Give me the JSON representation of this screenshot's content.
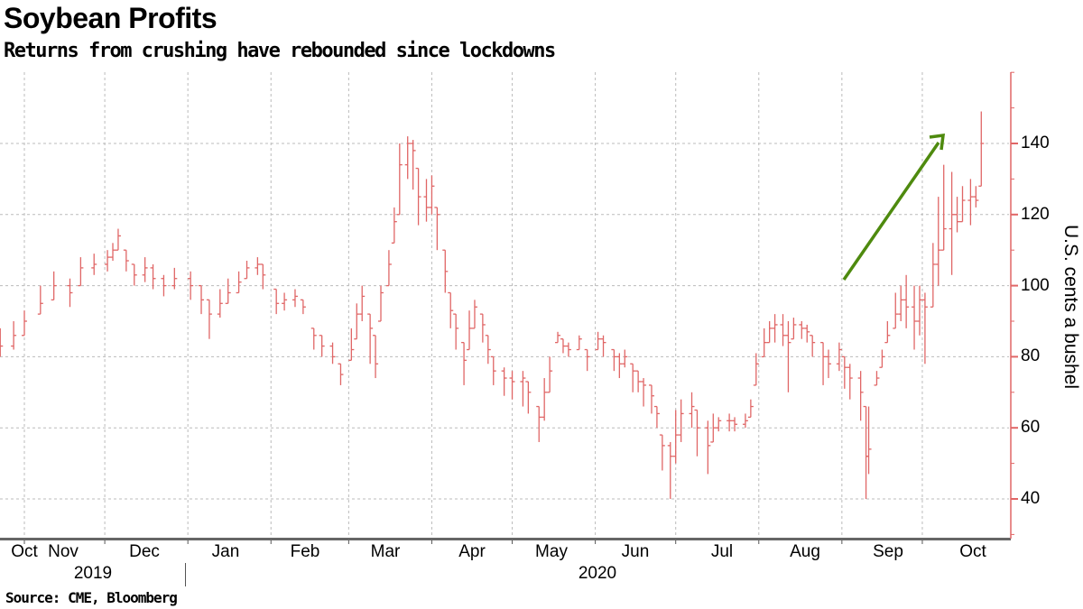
{
  "chart_data": {
    "type": "ohlc",
    "title": "Soybean Profits",
    "subtitle": "Returns from crushing have rebounded since lockdowns",
    "ylabel": "U.S. cents a bushel",
    "source": "Source: CME, Bloomberg",
    "ylim": [
      29,
      160
    ],
    "yticks": [
      "40",
      "60",
      "80",
      "100",
      "120",
      "140"
    ],
    "ytick_values": [
      40,
      60,
      80,
      100,
      120,
      140
    ],
    "x_range": [
      "2019-10-22",
      "2020-10-28"
    ],
    "month_labels": [
      "Oct",
      "Nov",
      "Dec",
      "Jan",
      "Feb",
      "Mar",
      "Apr",
      "May",
      "Jun",
      "Jul",
      "Aug",
      "Sep",
      "Oct"
    ],
    "year_labels": [
      "2019",
      "2020"
    ],
    "grid": true,
    "colors": {
      "bars": "#e06666",
      "axis": "#e06666",
      "arrow": "#4e8a0e",
      "grid": "#bbbbbb"
    },
    "annotation": "upward green arrow",
    "bar_fields": [
      "date",
      "high",
      "low",
      "close"
    ],
    "bars": [
      [
        "2019-10-23",
        88,
        80,
        83
      ],
      [
        "2019-10-28",
        90,
        82,
        86
      ],
      [
        "2019-11-01",
        93,
        86,
        90
      ],
      [
        "2019-11-07",
        100,
        92,
        95
      ],
      [
        "2019-11-12",
        104,
        96,
        100
      ],
      [
        "2019-11-18",
        102,
        94,
        98
      ],
      [
        "2019-11-22",
        108,
        100,
        105
      ],
      [
        "2019-11-27",
        109,
        103,
        106
      ],
      [
        "2019-12-02",
        110,
        104,
        108
      ],
      [
        "2019-12-04",
        112,
        107,
        110
      ],
      [
        "2019-12-06",
        116,
        110,
        114
      ],
      [
        "2019-12-09",
        110,
        104,
        107
      ],
      [
        "2019-12-12",
        106,
        100,
        103
      ],
      [
        "2019-12-16",
        108,
        101,
        105
      ],
      [
        "2019-12-19",
        106,
        99,
        102
      ],
      [
        "2019-12-23",
        103,
        97,
        100
      ],
      [
        "2019-12-27",
        105,
        99,
        102
      ],
      [
        "2020-01-02",
        104,
        96,
        100
      ],
      [
        "2020-01-06",
        100,
        92,
        96
      ],
      [
        "2020-01-09",
        96,
        85,
        92
      ],
      [
        "2020-01-13",
        99,
        91,
        95
      ],
      [
        "2020-01-16",
        102,
        95,
        98
      ],
      [
        "2020-01-20",
        104,
        98,
        101
      ],
      [
        "2020-01-23",
        107,
        102,
        105
      ],
      [
        "2020-01-27",
        108,
        103,
        106
      ],
      [
        "2020-01-29",
        106,
        99,
        103
      ],
      [
        "2020-02-03",
        99,
        92,
        95
      ],
      [
        "2020-02-06",
        98,
        93,
        96
      ],
      [
        "2020-02-10",
        99,
        94,
        97
      ],
      [
        "2020-02-13",
        96,
        92,
        94
      ],
      [
        "2020-02-17",
        88,
        82,
        86
      ],
      [
        "2020-02-20",
        86,
        80,
        83
      ],
      [
        "2020-02-24",
        84,
        78,
        80
      ],
      [
        "2020-02-27",
        78,
        72,
        75
      ],
      [
        "2020-03-02",
        88,
        79,
        82
      ],
      [
        "2020-03-04",
        95,
        85,
        92
      ],
      [
        "2020-03-06",
        100,
        90,
        97
      ],
      [
        "2020-03-09",
        92,
        78,
        88
      ],
      [
        "2020-03-11",
        86,
        74,
        78
      ],
      [
        "2020-03-13",
        100,
        90,
        98
      ],
      [
        "2020-03-16",
        110,
        100,
        106
      ],
      [
        "2020-03-18",
        122,
        112,
        118
      ],
      [
        "2020-03-20",
        140,
        120,
        134
      ],
      [
        "2020-03-23",
        142,
        130,
        140
      ],
      [
        "2020-03-25",
        141,
        127,
        138
      ],
      [
        "2020-03-27",
        133,
        117,
        125
      ],
      [
        "2020-03-30",
        130,
        118,
        122
      ],
      [
        "2020-04-01",
        131,
        120,
        128
      ],
      [
        "2020-04-03",
        122,
        110,
        120
      ],
      [
        "2020-04-06",
        110,
        98,
        104
      ],
      [
        "2020-04-08",
        98,
        88,
        93
      ],
      [
        "2020-04-10",
        92,
        82,
        88
      ],
      [
        "2020-04-13",
        84,
        72,
        79
      ],
      [
        "2020-04-15",
        93,
        82,
        88
      ],
      [
        "2020-04-17",
        96,
        88,
        94
      ],
      [
        "2020-04-20",
        92,
        84,
        89
      ],
      [
        "2020-04-22",
        86,
        78,
        82
      ],
      [
        "2020-04-24",
        80,
        72,
        76
      ],
      [
        "2020-04-28",
        77,
        69,
        74
      ],
      [
        "2020-05-01",
        76,
        68,
        73
      ],
      [
        "2020-05-05",
        76,
        66,
        74
      ],
      [
        "2020-05-07",
        73,
        64,
        70
      ],
      [
        "2020-05-11",
        66,
        56,
        63
      ],
      [
        "2020-05-13",
        74,
        62,
        70
      ],
      [
        "2020-05-15",
        80,
        70,
        76
      ],
      [
        "2020-05-18",
        87,
        84,
        86
      ],
      [
        "2020-05-20",
        85,
        81,
        83
      ],
      [
        "2020-05-22",
        84,
        80,
        82
      ],
      [
        "2020-05-26",
        86,
        82,
        85
      ],
      [
        "2020-05-29",
        82,
        76,
        80
      ],
      [
        "2020-06-02",
        87,
        82,
        85
      ],
      [
        "2020-06-04",
        86,
        80,
        84
      ],
      [
        "2020-06-08",
        82,
        76,
        80
      ],
      [
        "2020-06-10",
        81,
        74,
        78
      ],
      [
        "2020-06-12",
        82,
        77,
        80
      ],
      [
        "2020-06-15",
        78,
        70,
        76
      ],
      [
        "2020-06-17",
        76,
        70,
        73
      ],
      [
        "2020-06-19",
        74,
        66,
        72
      ],
      [
        "2020-06-22",
        72,
        64,
        69
      ],
      [
        "2020-06-24",
        66,
        60,
        64
      ],
      [
        "2020-06-26",
        58,
        48,
        55
      ],
      [
        "2020-06-29",
        56,
        40,
        52
      ],
      [
        "2020-07-01",
        65,
        50,
        58
      ],
      [
        "2020-07-03",
        68,
        56,
        64
      ],
      [
        "2020-07-07",
        70,
        60,
        66
      ],
      [
        "2020-07-09",
        65,
        52,
        60
      ],
      [
        "2020-07-13",
        62,
        47,
        55
      ],
      [
        "2020-07-15",
        64,
        56,
        60
      ],
      [
        "2020-07-17",
        63,
        59,
        62
      ],
      [
        "2020-07-21",
        64,
        59,
        62
      ],
      [
        "2020-07-23",
        63,
        59,
        61
      ],
      [
        "2020-07-27",
        64,
        60,
        62
      ],
      [
        "2020-07-29",
        68,
        63,
        66
      ],
      [
        "2020-07-31",
        81,
        72,
        78
      ],
      [
        "2020-08-03",
        88,
        80,
        84
      ],
      [
        "2020-08-05",
        90,
        84,
        88
      ],
      [
        "2020-08-07",
        92,
        84,
        89
      ],
      [
        "2020-08-10",
        92,
        83,
        86
      ],
      [
        "2020-08-12",
        90,
        70,
        84
      ],
      [
        "2020-08-14",
        91,
        85,
        89
      ],
      [
        "2020-08-17",
        90,
        85,
        88
      ],
      [
        "2020-08-19",
        89,
        84,
        87
      ],
      [
        "2020-08-21",
        86,
        80,
        84
      ],
      [
        "2020-08-25",
        84,
        72,
        80
      ],
      [
        "2020-08-27",
        82,
        74,
        78
      ],
      [
        "2020-08-31",
        84,
        76,
        82
      ],
      [
        "2020-09-02",
        80,
        71,
        77
      ],
      [
        "2020-09-04",
        78,
        68,
        74
      ],
      [
        "2020-09-08",
        76,
        62,
        70
      ],
      [
        "2020-09-10",
        66,
        40,
        52
      ],
      [
        "2020-09-11",
        66,
        47,
        54
      ],
      [
        "2020-09-14",
        76,
        72,
        74
      ],
      [
        "2020-09-16",
        82,
        77,
        80
      ],
      [
        "2020-09-18",
        90,
        84,
        86
      ],
      [
        "2020-09-21",
        98,
        88,
        92
      ],
      [
        "2020-09-23",
        100,
        90,
        96
      ],
      [
        "2020-09-25",
        103,
        88,
        94
      ],
      [
        "2020-09-28",
        100,
        82,
        90
      ],
      [
        "2020-09-30",
        100,
        86,
        96
      ],
      [
        "2020-10-02",
        98,
        78,
        94
      ],
      [
        "2020-10-05",
        112,
        94,
        106
      ],
      [
        "2020-10-07",
        125,
        100,
        110
      ],
      [
        "2020-10-09",
        134,
        110,
        116
      ],
      [
        "2020-10-12",
        132,
        103,
        120
      ],
      [
        "2020-10-14",
        125,
        115,
        118
      ],
      [
        "2020-10-16",
        128,
        118,
        124
      ],
      [
        "2020-10-19",
        130,
        117,
        125
      ],
      [
        "2020-10-21",
        128,
        122,
        124
      ],
      [
        "2020-10-23",
        149,
        128,
        140
      ]
    ]
  }
}
